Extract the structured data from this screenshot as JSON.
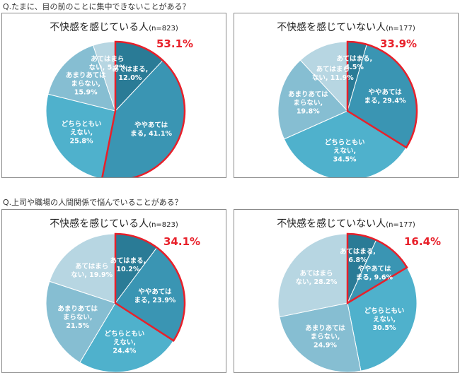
{
  "questions": [
    "Q.たまに、目の前のことに集中できないことがある？",
    "Q.上司や職場の人間関係で悩んでいることがある？"
  ],
  "colors": {
    "highlight_border": "#e8202a",
    "slices": [
      "#2a7b96",
      "#3a95b3",
      "#4fb1cc",
      "#86bed2",
      "#b7d6e2"
    ]
  },
  "chart_data": [
    {
      "type": "pie",
      "title": "不快感を感じている人",
      "n_label": "(n=823)",
      "highlight_total": "53.1%",
      "slices": [
        {
          "label": [
            "あてはまる,",
            "12.0%"
          ],
          "value": 12.0
        },
        {
          "label": [
            "ややあては",
            "まる, 41.1%"
          ],
          "value": 41.1
        },
        {
          "label": [
            "どちらともい",
            "えない,",
            "25.8%"
          ],
          "value": 25.8
        },
        {
          "label": [
            "あまりあては",
            "まらない,",
            "15.9%"
          ],
          "value": 15.9
        },
        {
          "label": [
            "あてはまら",
            "ない, 5.2%"
          ],
          "value": 5.2
        }
      ]
    },
    {
      "type": "pie",
      "title": "不快感を感じていない人",
      "n_label": "(n=177)",
      "highlight_total": "33.9%",
      "slices": [
        {
          "label": [
            "あてはまる,",
            "4.5%"
          ],
          "value": 4.5
        },
        {
          "label": [
            "ややあては",
            "まる, 29.4%"
          ],
          "value": 29.4
        },
        {
          "label": [
            "どちらともい",
            "えない,",
            "34.5%"
          ],
          "value": 34.5
        },
        {
          "label": [
            "あまりあては",
            "まらない,",
            "19.8%"
          ],
          "value": 19.8
        },
        {
          "label": [
            "あてはまら",
            "ない, 11.9%"
          ],
          "value": 11.9
        }
      ]
    },
    {
      "type": "pie",
      "title": "不快感を感じている人",
      "n_label": "(n=823)",
      "highlight_total": "34.1%",
      "slices": [
        {
          "label": [
            "あてはまる,",
            "10.2%"
          ],
          "value": 10.2
        },
        {
          "label": [
            "ややあては",
            "まる, 23.9%"
          ],
          "value": 23.9
        },
        {
          "label": [
            "どちらともい",
            "えない,",
            "24.4%"
          ],
          "value": 24.4
        },
        {
          "label": [
            "あまりあては",
            "まらない,",
            "21.5%"
          ],
          "value": 21.5
        },
        {
          "label": [
            "あてはまら",
            "ない, 19.9%"
          ],
          "value": 19.9
        }
      ]
    },
    {
      "type": "pie",
      "title": "不快感を感じていない人",
      "n_label": "(n=177)",
      "highlight_total": "16.4%",
      "slices": [
        {
          "label": [
            "あてはまる,",
            "6.8%"
          ],
          "value": 6.8
        },
        {
          "label": [
            "ややあては",
            "まる, 9.6%"
          ],
          "value": 9.6
        },
        {
          "label": [
            "どちらともい",
            "えない,",
            "30.5%"
          ],
          "value": 30.5
        },
        {
          "label": [
            "あまりあては",
            "まらない,",
            "24.9%"
          ],
          "value": 24.9
        },
        {
          "label": [
            "あてはまら",
            "ない, 28.2%"
          ],
          "value": 28.2
        }
      ]
    }
  ]
}
